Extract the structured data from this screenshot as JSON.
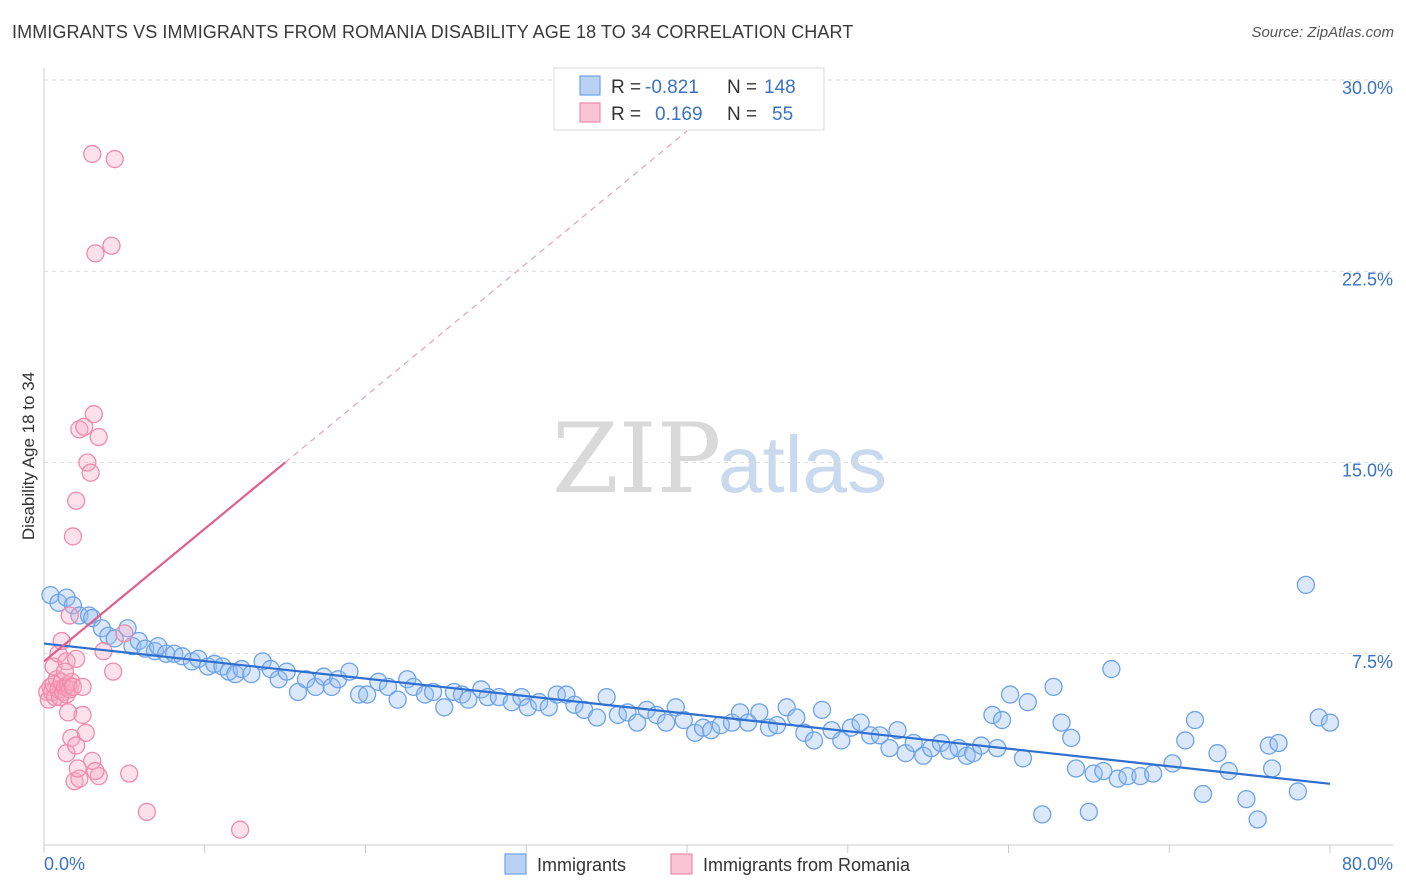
{
  "title": "IMMIGRANTS VS IMMIGRANTS FROM ROMANIA DISABILITY AGE 18 TO 34 CORRELATION CHART",
  "source": "Source: ZipAtlas.com",
  "watermark": {
    "zip": "ZIP",
    "atlas": "atlas"
  },
  "colors": {
    "blue": "#6fa3e6",
    "blue_line": "#2f6fd0",
    "pink": "#f08cab",
    "pink_line": "#e0608c",
    "grid": "#dcdcdc"
  },
  "legend": {
    "rows": [
      {
        "r_label": "R =",
        "r_value": "-0.821",
        "n_label": "N =",
        "n_value": "148"
      },
      {
        "r_label": "R =",
        "r_value": "0.169",
        "n_label": "N =",
        "n_value": "55"
      }
    ]
  },
  "chart_data": {
    "type": "scatter",
    "title": "IMMIGRANTS VS IMMIGRANTS FROM ROMANIA DISABILITY AGE 18 TO 34 CORRELATION CHART",
    "xlabel": "",
    "ylabel": "Disability Age 18 to 34",
    "xlim": [
      0,
      80
    ],
    "ylim": [
      0,
      30
    ],
    "x_tick_labels": [
      "0.0%",
      "80.0%"
    ],
    "y_ticks": [
      7.5,
      15.0,
      22.5,
      30.0
    ],
    "y_tick_labels": [
      "7.5%",
      "15.0%",
      "22.5%",
      "30.0%"
    ],
    "grid": true,
    "legend_position": "bottom",
    "series": [
      {
        "name": "Immigrants",
        "color": "#6fa3e6",
        "trend": {
          "x": [
            0,
            80
          ],
          "y": [
            7.9,
            2.4
          ]
        },
        "points": [
          [
            0.4,
            9.8
          ],
          [
            0.9,
            9.5
          ],
          [
            1.4,
            9.7
          ],
          [
            1.8,
            9.4
          ],
          [
            2.2,
            9.0
          ],
          [
            2.8,
            9.0
          ],
          [
            3.0,
            8.9
          ],
          [
            3.6,
            8.5
          ],
          [
            4.0,
            8.2
          ],
          [
            4.4,
            8.1
          ],
          [
            5.2,
            8.5
          ],
          [
            5.5,
            7.8
          ],
          [
            5.9,
            8.0
          ],
          [
            6.3,
            7.7
          ],
          [
            6.9,
            7.6
          ],
          [
            7.1,
            7.8
          ],
          [
            7.6,
            7.5
          ],
          [
            8.1,
            7.5
          ],
          [
            8.6,
            7.4
          ],
          [
            9.2,
            7.2
          ],
          [
            9.6,
            7.3
          ],
          [
            10.2,
            7.0
          ],
          [
            10.6,
            7.1
          ],
          [
            11.1,
            7.0
          ],
          [
            11.5,
            6.8
          ],
          [
            11.9,
            6.7
          ],
          [
            12.3,
            6.9
          ],
          [
            12.9,
            6.7
          ],
          [
            13.6,
            7.2
          ],
          [
            14.1,
            6.9
          ],
          [
            14.6,
            6.5
          ],
          [
            15.1,
            6.8
          ],
          [
            15.8,
            6.0
          ],
          [
            16.3,
            6.5
          ],
          [
            16.9,
            6.2
          ],
          [
            17.4,
            6.6
          ],
          [
            17.9,
            6.2
          ],
          [
            18.3,
            6.5
          ],
          [
            19.0,
            6.8
          ],
          [
            19.6,
            5.9
          ],
          [
            20.1,
            5.9
          ],
          [
            20.8,
            6.4
          ],
          [
            21.4,
            6.2
          ],
          [
            22.0,
            5.7
          ],
          [
            22.6,
            6.5
          ],
          [
            23.0,
            6.2
          ],
          [
            23.7,
            5.9
          ],
          [
            24.2,
            6.0
          ],
          [
            24.9,
            5.4
          ],
          [
            25.5,
            6.0
          ],
          [
            26.0,
            5.9
          ],
          [
            26.4,
            5.7
          ],
          [
            27.2,
            6.1
          ],
          [
            27.6,
            5.8
          ],
          [
            28.3,
            5.8
          ],
          [
            29.1,
            5.6
          ],
          [
            29.7,
            5.8
          ],
          [
            30.1,
            5.4
          ],
          [
            30.8,
            5.6
          ],
          [
            31.4,
            5.4
          ],
          [
            31.9,
            5.9
          ],
          [
            32.5,
            5.9
          ],
          [
            33.0,
            5.5
          ],
          [
            33.6,
            5.3
          ],
          [
            34.4,
            5.0
          ],
          [
            35.0,
            5.8
          ],
          [
            35.7,
            5.1
          ],
          [
            36.3,
            5.2
          ],
          [
            36.9,
            4.8
          ],
          [
            37.5,
            5.3
          ],
          [
            38.1,
            5.1
          ],
          [
            38.7,
            4.8
          ],
          [
            39.3,
            5.4
          ],
          [
            39.8,
            4.9
          ],
          [
            40.5,
            4.4
          ],
          [
            41.0,
            4.6
          ],
          [
            41.5,
            4.5
          ],
          [
            42.1,
            4.7
          ],
          [
            42.8,
            4.8
          ],
          [
            43.3,
            5.2
          ],
          [
            43.8,
            4.8
          ],
          [
            44.5,
            5.2
          ],
          [
            45.1,
            4.6
          ],
          [
            45.6,
            4.7
          ],
          [
            46.2,
            5.4
          ],
          [
            46.8,
            5.0
          ],
          [
            47.3,
            4.4
          ],
          [
            47.9,
            4.1
          ],
          [
            48.4,
            5.3
          ],
          [
            49.0,
            4.5
          ],
          [
            49.6,
            4.1
          ],
          [
            50.2,
            4.6
          ],
          [
            50.8,
            4.8
          ],
          [
            51.4,
            4.3
          ],
          [
            52.0,
            4.3
          ],
          [
            52.6,
            3.8
          ],
          [
            53.1,
            4.5
          ],
          [
            53.6,
            3.6
          ],
          [
            54.1,
            4.0
          ],
          [
            54.7,
            3.5
          ],
          [
            55.2,
            3.8
          ],
          [
            55.8,
            4.0
          ],
          [
            56.3,
            3.7
          ],
          [
            56.9,
            3.8
          ],
          [
            57.4,
            3.5
          ],
          [
            57.8,
            3.6
          ],
          [
            58.3,
            3.9
          ],
          [
            59.0,
            5.1
          ],
          [
            59.6,
            4.9
          ],
          [
            59.3,
            3.8
          ],
          [
            60.1,
            5.9
          ],
          [
            60.9,
            3.4
          ],
          [
            61.2,
            5.6
          ],
          [
            62.1,
            1.2
          ],
          [
            62.8,
            6.2
          ],
          [
            63.3,
            4.8
          ],
          [
            63.9,
            4.2
          ],
          [
            64.2,
            3.0
          ],
          [
            65.0,
            1.3
          ],
          [
            65.3,
            2.8
          ],
          [
            65.9,
            2.9
          ],
          [
            66.4,
            6.9
          ],
          [
            66.8,
            2.6
          ],
          [
            67.4,
            2.7
          ],
          [
            68.2,
            2.7
          ],
          [
            69.0,
            2.8
          ],
          [
            70.2,
            3.2
          ],
          [
            71.0,
            4.1
          ],
          [
            71.6,
            4.9
          ],
          [
            72.1,
            2.0
          ],
          [
            73.0,
            3.6
          ],
          [
            73.7,
            2.9
          ],
          [
            74.8,
            1.8
          ],
          [
            75.5,
            1.0
          ],
          [
            76.2,
            3.9
          ],
          [
            76.4,
            3.0
          ],
          [
            76.8,
            4.0
          ],
          [
            78.0,
            2.1
          ],
          [
            78.5,
            10.2
          ],
          [
            79.3,
            5.0
          ],
          [
            80.0,
            4.8
          ]
        ]
      },
      {
        "name": "Immigrants from Romania",
        "color": "#f08cab",
        "trend": {
          "x": [
            0,
            15
          ],
          "y": [
            7.2,
            15.0
          ]
        },
        "trend_extension": {
          "x": [
            15,
            40
          ],
          "y": [
            15.0,
            28.0
          ]
        },
        "points": [
          [
            0.2,
            6.0
          ],
          [
            0.3,
            5.7
          ],
          [
            0.4,
            6.2
          ],
          [
            0.5,
            6.0
          ],
          [
            0.6,
            6.3
          ],
          [
            0.7,
            5.8
          ],
          [
            0.8,
            6.5
          ],
          [
            0.9,
            6.1
          ],
          [
            1.0,
            5.8
          ],
          [
            1.1,
            6.4
          ],
          [
            1.2,
            6.0
          ],
          [
            1.3,
            6.2
          ],
          [
            1.4,
            5.9
          ],
          [
            1.5,
            6.3
          ],
          [
            1.6,
            6.1
          ],
          [
            1.7,
            6.4
          ],
          [
            1.8,
            6.2
          ],
          [
            0.6,
            7.0
          ],
          [
            0.9,
            7.5
          ],
          [
            1.1,
            8.0
          ],
          [
            1.4,
            7.2
          ],
          [
            1.6,
            9.0
          ],
          [
            1.8,
            12.1
          ],
          [
            2.0,
            13.5
          ],
          [
            2.2,
            16.3
          ],
          [
            2.5,
            16.4
          ],
          [
            2.7,
            15.0
          ],
          [
            2.9,
            14.6
          ],
          [
            3.1,
            16.9
          ],
          [
            3.4,
            16.0
          ],
          [
            3.0,
            27.1
          ],
          [
            4.4,
            26.9
          ],
          [
            3.2,
            23.2
          ],
          [
            4.2,
            23.5
          ],
          [
            2.0,
            7.3
          ],
          [
            2.4,
            6.2
          ],
          [
            1.4,
            3.6
          ],
          [
            1.7,
            4.2
          ],
          [
            2.0,
            3.9
          ],
          [
            2.4,
            5.1
          ],
          [
            1.9,
            2.5
          ],
          [
            2.2,
            2.6
          ],
          [
            2.6,
            4.4
          ],
          [
            3.0,
            3.3
          ],
          [
            3.4,
            2.7
          ],
          [
            3.7,
            7.6
          ],
          [
            4.3,
            6.8
          ],
          [
            1.5,
            5.2
          ],
          [
            2.1,
            3.0
          ],
          [
            3.2,
            2.9
          ],
          [
            5.0,
            8.3
          ],
          [
            5.3,
            2.8
          ],
          [
            6.4,
            1.3
          ],
          [
            12.2,
            0.6
          ],
          [
            1.3,
            6.8
          ]
        ]
      }
    ]
  }
}
